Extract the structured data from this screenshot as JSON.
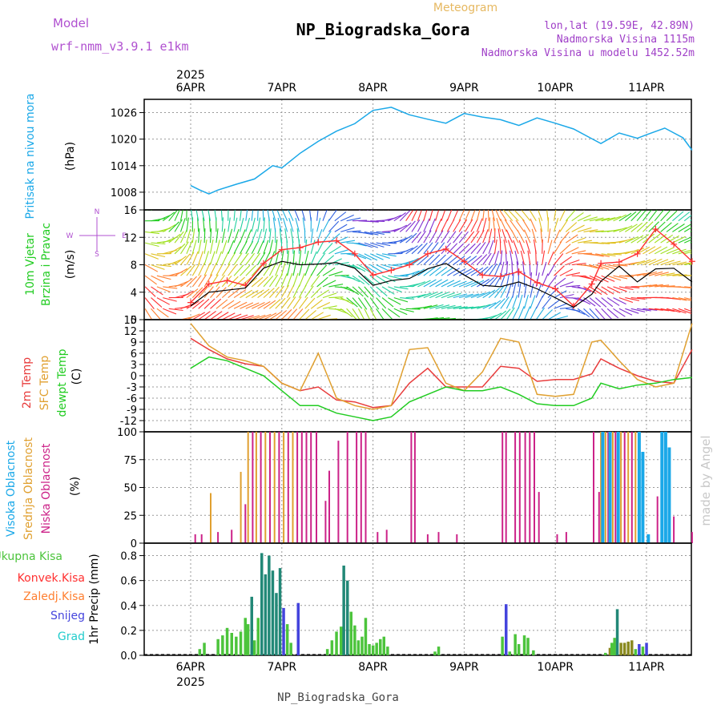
{
  "header": {
    "model_label": "Model",
    "model_name": "wrf-nmm_v3.9.1 e1km",
    "product": "Meteogram",
    "title": "NP_Biogradska_Gora",
    "lonlat": "lon,lat (19.59E, 42.89N)",
    "elevation": "Nadmorska Visina 1115m",
    "model_elevation": "Nadmorska Visina u modelu 1452.52m",
    "footer_title": "NP_Biogradska_Gora",
    "credit": "made by Angel"
  },
  "colors": {
    "pressure": "#1aa8e8",
    "wind_speed": "#000000",
    "gust": "#ff3030",
    "temp2m": "#e83c3c",
    "sfc_temp": "#e0a030",
    "dewpoint": "#22cc22",
    "cloud_high": "#1aa8e8",
    "cloud_mid": "#e0a030",
    "cloud_low": "#cc2288",
    "precip_total": "#4cc43c",
    "precip_conv": "#ff3030",
    "precip_frozen": "#ff7f30",
    "precip_snow": "#4444dd",
    "precip_graupel": "#22cccc",
    "model_purple": "#b050d0"
  },
  "time_axis": {
    "top_year": "2025",
    "bottom_year": "2025",
    "days": [
      "6APR",
      "7APR",
      "8APR",
      "9APR",
      "10APR",
      "11APR"
    ]
  },
  "panels": {
    "pressure": {
      "ylabel": "Pritisak na nivou mora",
      "unit": "(hPa)"
    },
    "wind": {
      "ylabel1": "10m Vjetar",
      "ylabel2": "Brzina i Pravac",
      "unit": "(m/s)",
      "compass": [
        "N",
        "S",
        "W",
        "E"
      ]
    },
    "temp": {
      "ylabel1": "2m Temp",
      "ylabel2": "SFC Temp",
      "ylabel3": "dewpt Temp",
      "unit": "(C)"
    },
    "cloud": {
      "ylabel1": "Visoka Oblacnost",
      "ylabel2": "Srednja Oblacnost",
      "ylabel3": "Niska Oblacnost",
      "unit": "(%)"
    },
    "precip": {
      "legend": [
        "Ukupna Kisa",
        "Konvek.Kisa",
        "Zaledj.Kisa",
        "Snijeg",
        "Grad"
      ],
      "ylabel": "1hr Precip (mm)"
    }
  },
  "chart_data": [
    {
      "type": "line",
      "name": "pressure",
      "ylim": [
        1004,
        1029
      ],
      "yticks": [
        1008,
        1014,
        1020,
        1026
      ],
      "x_days": [
        0,
        0.1,
        0.2,
        0.3,
        0.5,
        0.7,
        0.9,
        1.0,
        1.2,
        1.4,
        1.6,
        1.8,
        2.0,
        2.2,
        2.4,
        2.6,
        2.8,
        3.0,
        3.2,
        3.4,
        3.6,
        3.8,
        4.0,
        4.2,
        4.4,
        4.5,
        4.7,
        4.9,
        5.0,
        5.2,
        5.4,
        5.5
      ],
      "values": [
        1009.5,
        1008.5,
        1007.6,
        1008.5,
        1009.8,
        1011,
        1014.0,
        1013.5,
        1016.8,
        1019.5,
        1021.8,
        1023.5,
        1026.5,
        1027.2,
        1025.5,
        1024.5,
        1023.6,
        1025.8,
        1025,
        1024.4,
        1023.1,
        1024.8,
        1023.6,
        1022.3,
        1020.1,
        1019.0,
        1021.4,
        1020.2,
        1021.0,
        1022.5,
        1020.3,
        1017.5
      ],
      "grid": true
    },
    {
      "type": "line",
      "name": "wind",
      "ylim": [
        0,
        16
      ],
      "yticks": [
        0,
        4,
        8,
        12,
        16
      ],
      "x_days": [
        0,
        0.2,
        0.4,
        0.6,
        0.8,
        1.0,
        1.2,
        1.4,
        1.6,
        1.8,
        2.0,
        2.2,
        2.4,
        2.6,
        2.8,
        3.0,
        3.2,
        3.4,
        3.6,
        3.8,
        4.0,
        4.2,
        4.4,
        4.5,
        4.7,
        4.9,
        5.1,
        5.3,
        5.5
      ],
      "series": [
        {
          "name": "speed",
          "values": [
            2.0,
            4.0,
            4.3,
            4.6,
            7.5,
            8.5,
            8.0,
            8.1,
            8.3,
            7.5,
            5.0,
            5.7,
            6.0,
            7.4,
            8.2,
            6.5,
            5.0,
            4.8,
            5.5,
            4.5,
            3.2,
            1.8,
            3.7,
            5.6,
            7.8,
            5.5,
            7.4,
            7.5,
            5.5
          ]
        },
        {
          "name": "gust",
          "values": [
            2.5,
            5.2,
            5.7,
            5.0,
            8.2,
            10.2,
            10.5,
            11.3,
            11.5,
            9.6,
            6.5,
            7.2,
            8.0,
            9.6,
            10.3,
            8.5,
            6.5,
            6.3,
            7.0,
            5.4,
            4.5,
            2.0,
            5.2,
            8.2,
            8.4,
            9.6,
            13.2,
            11.0,
            8.5
          ]
        }
      ],
      "grid": true
    },
    {
      "type": "line",
      "name": "temperature",
      "ylim": [
        -15,
        15
      ],
      "yticks": [
        -12,
        -9,
        -6,
        -3,
        0,
        3,
        6,
        9,
        12,
        15
      ],
      "x_days": [
        0,
        0.2,
        0.4,
        0.6,
        0.8,
        1.0,
        1.2,
        1.4,
        1.6,
        1.8,
        2.0,
        2.2,
        2.4,
        2.6,
        2.8,
        3.0,
        3.2,
        3.4,
        3.6,
        3.8,
        4.0,
        4.2,
        4.4,
        4.5,
        4.7,
        4.9,
        5.1,
        5.3,
        5.5
      ],
      "series": [
        {
          "name": "2m",
          "values": [
            10,
            7,
            4.5,
            3.2,
            2.5,
            -2.0,
            -4.0,
            -3.0,
            -6.5,
            -7.0,
            -8.5,
            -8.0,
            -2.0,
            2.0,
            -3.0,
            -3.0,
            -3.0,
            2.5,
            2.0,
            -1.5,
            -1.0,
            -1.0,
            0.5,
            4.5,
            2.0,
            0.0,
            -1.5,
            -2.0,
            7.0
          ]
        },
        {
          "name": "sfc",
          "values": [
            14,
            8,
            5,
            4,
            2.5,
            -2.0,
            -4.0,
            6.0,
            -6.0,
            -8.0,
            -9.0,
            -8.0,
            7.0,
            7.5,
            -2.0,
            -4.0,
            1.0,
            10.0,
            9.0,
            -5.0,
            -5.5,
            -5.0,
            9.0,
            9.5,
            4.0,
            -1.0,
            -3.0,
            -2.0,
            14.0
          ]
        },
        {
          "name": "dewpt",
          "values": [
            2.0,
            5.0,
            4.0,
            2.0,
            0.0,
            -4.0,
            -8.0,
            -8.0,
            -10.0,
            -11.0,
            -12.0,
            -11.0,
            -7.0,
            -5.0,
            -3.0,
            -4.0,
            -4.0,
            -3.0,
            -5.0,
            -7.5,
            -8.0,
            -8.0,
            -6.0,
            -2.0,
            -3.5,
            -2.5,
            -2.0,
            -1.0,
            -0.5
          ]
        }
      ],
      "grid": true
    },
    {
      "type": "bar",
      "name": "cloud",
      "ylim": [
        0,
        100
      ],
      "yticks": [
        0,
        25,
        50,
        75,
        100
      ],
      "bars": [
        {
          "x": 0.05,
          "series": "low",
          "v": 8
        },
        {
          "x": 0.12,
          "series": "low",
          "v": 8
        },
        {
          "x": 0.22,
          "series": "mid",
          "v": 45
        },
        {
          "x": 0.3,
          "series": "low",
          "v": 10
        },
        {
          "x": 0.45,
          "series": "low",
          "v": 12
        },
        {
          "x": 0.55,
          "series": "mid",
          "v": 64
        },
        {
          "x": 0.6,
          "series": "low",
          "v": 35
        },
        {
          "x": 0.63,
          "series": "mid",
          "v": 100
        },
        {
          "x": 0.68,
          "series": "low",
          "v": 100
        },
        {
          "x": 0.72,
          "series": "mid",
          "v": 100
        },
        {
          "x": 0.77,
          "series": "low",
          "v": 100
        },
        {
          "x": 0.82,
          "series": "mid",
          "v": 100
        },
        {
          "x": 0.87,
          "series": "low",
          "v": 100
        },
        {
          "x": 0.92,
          "series": "mid",
          "v": 100
        },
        {
          "x": 0.97,
          "series": "low",
          "v": 100
        },
        {
          "x": 1.02,
          "series": "mid",
          "v": 100
        },
        {
          "x": 1.07,
          "series": "low",
          "v": 100
        },
        {
          "x": 1.12,
          "series": "mid",
          "v": 100
        },
        {
          "x": 1.17,
          "series": "low",
          "v": 100
        },
        {
          "x": 1.22,
          "series": "low",
          "v": 100
        },
        {
          "x": 1.27,
          "series": "low",
          "v": 100
        },
        {
          "x": 1.32,
          "series": "low",
          "v": 100
        },
        {
          "x": 1.38,
          "series": "low",
          "v": 100
        },
        {
          "x": 1.48,
          "series": "low",
          "v": 38
        },
        {
          "x": 1.52,
          "series": "low",
          "v": 65
        },
        {
          "x": 1.62,
          "series": "low",
          "v": 92
        },
        {
          "x": 1.72,
          "series": "low",
          "v": 100
        },
        {
          "x": 1.82,
          "series": "low",
          "v": 100
        },
        {
          "x": 1.87,
          "series": "low",
          "v": 100
        },
        {
          "x": 1.92,
          "series": "low",
          "v": 100
        },
        {
          "x": 2.05,
          "series": "low",
          "v": 10
        },
        {
          "x": 2.15,
          "series": "low",
          "v": 12
        },
        {
          "x": 2.42,
          "series": "low",
          "v": 100
        },
        {
          "x": 2.46,
          "series": "low",
          "v": 100
        },
        {
          "x": 2.6,
          "series": "low",
          "v": 8
        },
        {
          "x": 2.72,
          "series": "low",
          "v": 10
        },
        {
          "x": 2.92,
          "series": "low",
          "v": 8
        },
        {
          "x": 3.42,
          "series": "low",
          "v": 100
        },
        {
          "x": 3.46,
          "series": "low",
          "v": 100
        },
        {
          "x": 3.56,
          "series": "low",
          "v": 100
        },
        {
          "x": 3.61,
          "series": "low",
          "v": 100
        },
        {
          "x": 3.67,
          "series": "low",
          "v": 100
        },
        {
          "x": 3.72,
          "series": "low",
          "v": 100
        },
        {
          "x": 3.77,
          "series": "low",
          "v": 100
        },
        {
          "x": 3.82,
          "series": "low",
          "v": 46
        },
        {
          "x": 4.02,
          "series": "low",
          "v": 8
        },
        {
          "x": 4.12,
          "series": "low",
          "v": 10
        },
        {
          "x": 4.42,
          "series": "low",
          "v": 100
        },
        {
          "x": 4.48,
          "series": "low",
          "v": 46
        },
        {
          "x": 4.5,
          "series": "mid",
          "v": 100
        },
        {
          "x": 4.52,
          "series": "high",
          "v": 100
        },
        {
          "x": 4.55,
          "series": "mid",
          "v": 100
        },
        {
          "x": 4.58,
          "series": "low",
          "v": 100
        },
        {
          "x": 4.6,
          "series": "high",
          "v": 100
        },
        {
          "x": 4.63,
          "series": "mid",
          "v": 100
        },
        {
          "x": 4.66,
          "series": "low",
          "v": 100
        },
        {
          "x": 4.69,
          "series": "high",
          "v": 100
        },
        {
          "x": 4.72,
          "series": "mid",
          "v": 100
        },
        {
          "x": 4.76,
          "series": "low",
          "v": 100
        },
        {
          "x": 4.8,
          "series": "mid",
          "v": 100
        },
        {
          "x": 4.84,
          "series": "low",
          "v": 100
        },
        {
          "x": 4.88,
          "series": "mid",
          "v": 100
        },
        {
          "x": 4.92,
          "series": "high",
          "v": 100
        },
        {
          "x": 4.96,
          "series": "high",
          "v": 82
        },
        {
          "x": 5.02,
          "series": "high",
          "v": 8
        },
        {
          "x": 5.12,
          "series": "low",
          "v": 42
        },
        {
          "x": 5.17,
          "series": "high",
          "v": 100
        },
        {
          "x": 5.21,
          "series": "high",
          "v": 100
        },
        {
          "x": 5.25,
          "series": "high",
          "v": 86
        },
        {
          "x": 5.3,
          "series": "low",
          "v": 24
        },
        {
          "x": 5.5,
          "series": "low",
          "v": 10
        }
      ],
      "grid": true
    },
    {
      "type": "bar",
      "name": "precipitation",
      "ylim": [
        0,
        0.9
      ],
      "yticks": [
        0,
        0.2,
        0.4,
        0.6,
        0.8
      ],
      "bars": [
        {
          "x": 0.1,
          "series": "total",
          "v": 0.05
        },
        {
          "x": 0.15,
          "series": "total",
          "v": 0.1
        },
        {
          "x": 0.3,
          "series": "total",
          "v": 0.13
        },
        {
          "x": 0.35,
          "series": "total",
          "v": 0.16
        },
        {
          "x": 0.4,
          "series": "total",
          "v": 0.22
        },
        {
          "x": 0.45,
          "series": "total",
          "v": 0.18
        },
        {
          "x": 0.5,
          "series": "total",
          "v": 0.15
        },
        {
          "x": 0.55,
          "series": "total",
          "v": 0.19
        },
        {
          "x": 0.6,
          "series": "total",
          "v": 0.3
        },
        {
          "x": 0.63,
          "series": "total",
          "v": 0.25
        },
        {
          "x": 0.67,
          "series": "total",
          "v": 0.47
        },
        {
          "x": 0.7,
          "series": "total",
          "v": 0.12
        },
        {
          "x": 0.74,
          "series": "total",
          "v": 0.3
        },
        {
          "x": 0.78,
          "series": "total",
          "v": 0.82
        },
        {
          "x": 0.82,
          "series": "total",
          "v": 0.65
        },
        {
          "x": 0.86,
          "series": "total",
          "v": 0.8
        },
        {
          "x": 0.9,
          "series": "total",
          "v": 0.68
        },
        {
          "x": 0.94,
          "series": "total",
          "v": 0.5
        },
        {
          "x": 0.98,
          "series": "total",
          "v": 0.7
        },
        {
          "x": 1.02,
          "series": "snow",
          "v": 0.38
        },
        {
          "x": 1.06,
          "series": "total",
          "v": 0.25
        },
        {
          "x": 1.1,
          "series": "total",
          "v": 0.1
        },
        {
          "x": 1.18,
          "series": "snow",
          "v": 0.42
        },
        {
          "x": 1.5,
          "series": "total",
          "v": 0.05
        },
        {
          "x": 1.55,
          "series": "total",
          "v": 0.12
        },
        {
          "x": 1.6,
          "series": "total",
          "v": 0.19
        },
        {
          "x": 1.65,
          "series": "total",
          "v": 0.23
        },
        {
          "x": 1.68,
          "series": "total",
          "v": 0.72
        },
        {
          "x": 1.72,
          "series": "total",
          "v": 0.6
        },
        {
          "x": 1.76,
          "series": "total",
          "v": 0.35
        },
        {
          "x": 1.8,
          "series": "total",
          "v": 0.24
        },
        {
          "x": 1.84,
          "series": "total",
          "v": 0.12
        },
        {
          "x": 1.88,
          "series": "total",
          "v": 0.15
        },
        {
          "x": 1.92,
          "series": "total",
          "v": 0.3
        },
        {
          "x": 1.96,
          "series": "total",
          "v": 0.09
        },
        {
          "x": 2.0,
          "series": "total",
          "v": 0.08
        },
        {
          "x": 2.04,
          "series": "total",
          "v": 0.1
        },
        {
          "x": 2.08,
          "series": "total",
          "v": 0.13
        },
        {
          "x": 2.12,
          "series": "total",
          "v": 0.15
        },
        {
          "x": 2.16,
          "series": "total",
          "v": 0.07
        },
        {
          "x": 2.68,
          "series": "total",
          "v": 0.03
        },
        {
          "x": 2.72,
          "series": "total",
          "v": 0.07
        },
        {
          "x": 3.42,
          "series": "total",
          "v": 0.15
        },
        {
          "x": 3.46,
          "series": "snow",
          "v": 0.41
        },
        {
          "x": 3.5,
          "series": "total",
          "v": 0.03
        },
        {
          "x": 3.56,
          "series": "total",
          "v": 0.17
        },
        {
          "x": 3.6,
          "series": "total",
          "v": 0.09
        },
        {
          "x": 3.66,
          "series": "total",
          "v": 0.16
        },
        {
          "x": 3.7,
          "series": "total",
          "v": 0.14
        },
        {
          "x": 3.76,
          "series": "total",
          "v": 0.04
        },
        {
          "x": 4.55,
          "series": "total",
          "v": 0.02
        },
        {
          "x": 4.6,
          "series": "frozen",
          "v": 0.06
        },
        {
          "x": 4.62,
          "series": "total",
          "v": 0.1
        },
        {
          "x": 4.65,
          "series": "total",
          "v": 0.14
        },
        {
          "x": 4.68,
          "series": "total",
          "v": 0.37
        },
        {
          "x": 4.72,
          "series": "frozen",
          "v": 0.1
        },
        {
          "x": 4.76,
          "series": "frozen",
          "v": 0.1
        },
        {
          "x": 4.8,
          "series": "frozen",
          "v": 0.11
        },
        {
          "x": 4.84,
          "series": "frozen",
          "v": 0.12
        },
        {
          "x": 4.88,
          "series": "total",
          "v": 0.05
        },
        {
          "x": 4.92,
          "series": "snow",
          "v": 0.09
        },
        {
          "x": 4.96,
          "series": "total",
          "v": 0.07
        },
        {
          "x": 5.0,
          "series": "snow",
          "v": 0.1
        }
      ],
      "grid": true
    }
  ]
}
